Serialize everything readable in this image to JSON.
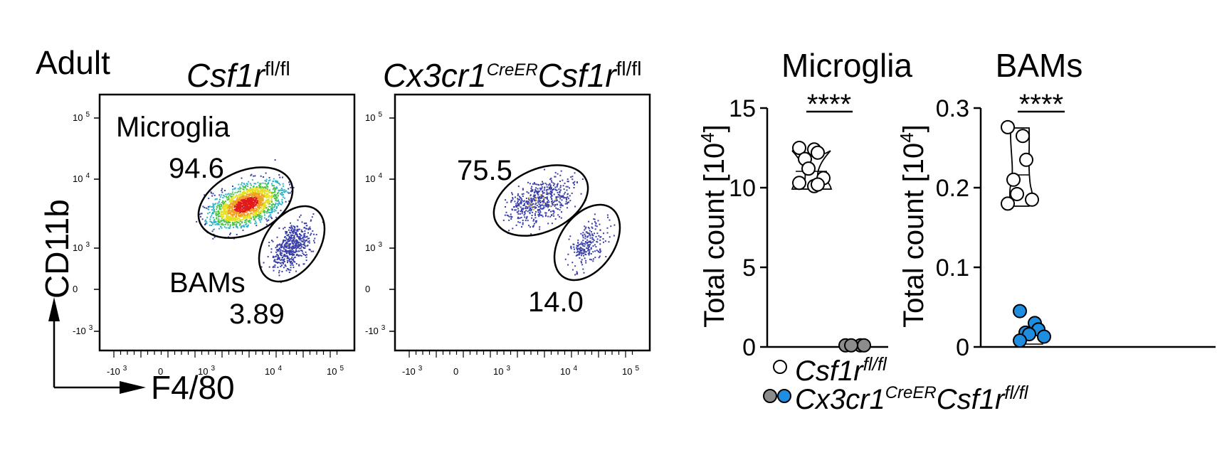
{
  "title": "Adult",
  "flow_axes": {
    "y_label": "CD11b",
    "x_label": "F4/80"
  },
  "flow_y_ticks": [
    {
      "base": "10",
      "exp": "5"
    },
    {
      "base": "10",
      "exp": "4"
    },
    {
      "base": "10",
      "exp": "3"
    },
    {
      "base": "0",
      "exp": ""
    },
    {
      "base": "-10",
      "exp": "3"
    }
  ],
  "flow_x_ticks": [
    {
      "base": "-10",
      "exp": "3"
    },
    {
      "base": "0",
      "exp": ""
    },
    {
      "base": "10",
      "exp": "3"
    },
    {
      "base": "10",
      "exp": "4"
    },
    {
      "base": "10",
      "exp": "5"
    }
  ],
  "flow_panels": [
    {
      "genotype": {
        "gene": "Csf1r",
        "sup": "fl/fl"
      },
      "gate_upper_value": "94.6",
      "gate_lower_value": "3.89",
      "label_microglia": "Microglia",
      "label_bams": "BAMs"
    },
    {
      "genotype": {
        "prefix": "Cx3cr1",
        "prefix_sup": "CreER",
        "gene": "Csf1r",
        "sup": "fl/fl"
      },
      "gate_upper_value": "75.5",
      "gate_lower_value": "14.0"
    }
  ],
  "legend": {
    "items": [
      {
        "gene": "Csf1r",
        "sup": "fl/fl",
        "colors": [
          "#ffffff"
        ]
      },
      {
        "prefix": "Cx3cr1",
        "prefix_sup": "CreER",
        "gene": "Csf1r",
        "sup": "fl/fl",
        "colors": [
          "#8c8c8c",
          "#1f8ee0"
        ]
      }
    ]
  },
  "significance": "****",
  "chart_data": [
    {
      "type": "scatter",
      "title": "Microglia",
      "ylabel": "Total count [10",
      "ylabel_sup": "4",
      "ylabel_end": "]",
      "ylim": [
        0,
        15
      ],
      "yticks": [
        "0",
        "5",
        "10",
        "15"
      ],
      "series": [
        {
          "color": "#ffffff",
          "values": [
            12.5,
            12.4,
            12.2,
            11.8,
            11.2,
            10.6,
            10.3,
            10.1,
            10.2
          ]
        },
        {
          "color": "#8c8c8c",
          "values": [
            0.1,
            0.1,
            0.1,
            0.1
          ]
        }
      ],
      "significance": "****"
    },
    {
      "type": "scatter",
      "title": "BAMs",
      "ylabel": "Total count [10",
      "ylabel_sup": "4",
      "ylabel_end": "]",
      "ylim": [
        0,
        0.3
      ],
      "yticks": [
        "0",
        "0.1",
        "0.2",
        "0.3"
      ],
      "series": [
        {
          "color": "#ffffff",
          "values": [
            0.276,
            0.265,
            0.235,
            0.21,
            0.192,
            0.185,
            0.18
          ]
        },
        {
          "color": "#1f8ee0",
          "values": [
            0.045,
            0.03,
            0.022,
            0.018,
            0.016,
            0.013,
            0.008
          ]
        }
      ],
      "significance": "****"
    }
  ],
  "colors": {
    "dot_edge": "#000000",
    "axis": "#000000"
  }
}
